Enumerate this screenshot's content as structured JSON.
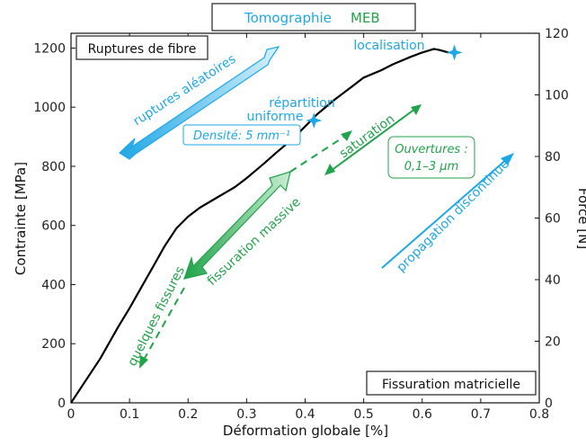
{
  "legend": {
    "tomographie": "Tomographie",
    "meb": "MEB",
    "color_tomographie": "#1ea7e6",
    "color_meb": "#21a34a"
  },
  "chart_data": {
    "type": "line",
    "xlabel": "Déformation globale [%]",
    "ylabel": "Contrainte [MPa]",
    "y2label": "Force [N]",
    "xlim": [
      0,
      0.8
    ],
    "ylim": [
      0,
      1250
    ],
    "y2lim": [
      0,
      120
    ],
    "x_ticks": [
      0,
      0.1,
      0.2,
      0.3,
      0.4,
      0.5,
      0.6,
      0.7,
      0.8
    ],
    "x_tick_labels": [
      "0",
      "0.1",
      "0.2",
      "0.3",
      "0.4",
      "0.5",
      "0.6",
      "0.7",
      "0.8"
    ],
    "y_ticks": [
      0,
      200,
      400,
      600,
      800,
      1000,
      1200
    ],
    "y_tick_labels": [
      "0",
      "200",
      "400",
      "600",
      "800",
      "1000",
      "1200"
    ],
    "y2_ticks": [
      0,
      20,
      40,
      60,
      80,
      100,
      120
    ],
    "y2_tick_labels": [
      "0",
      "20",
      "40",
      "60",
      "80",
      "100",
      "120"
    ],
    "grid": false,
    "curve_color": "#000000",
    "series": [
      {
        "x": [
          0,
          0.02,
          0.05,
          0.08,
          0.1,
          0.12,
          0.14,
          0.16,
          0.18,
          0.2,
          0.22,
          0.25,
          0.28,
          0.3,
          0.33,
          0.35,
          0.38,
          0.4,
          0.42,
          0.45,
          0.48,
          0.5,
          0.53,
          0.55,
          0.58,
          0.6,
          0.62,
          0.63,
          0.645
        ],
        "y": [
          0,
          60,
          150,
          255,
          320,
          390,
          460,
          530,
          590,
          630,
          660,
          695,
          730,
          760,
          810,
          845,
          895,
          935,
          975,
          1025,
          1070,
          1100,
          1125,
          1145,
          1170,
          1185,
          1197,
          1193,
          1185
        ]
      }
    ],
    "boxes": {
      "ruptures": "Ruptures de fibre",
      "fissuration": "Fissuration matricielle"
    },
    "annotations": {
      "ruptures_aleatoires": "ruptures aléatoires",
      "densite": "Densité: 5 mm⁻¹",
      "repartition": "répartition",
      "uniforme": "uniforme",
      "localisation": "localisation",
      "propagation": "propagation discontinue",
      "saturation": "saturation",
      "ouvertures_1": "Ouvertures :",
      "ouvertures_2": "0,1–3 µm",
      "fissuration_massive": "fissuration massive",
      "quelques_fissures": "quelques fissures"
    },
    "markers": [
      {
        "name": "repartition-marker",
        "x": 0.415,
        "y": 955,
        "color": "#1ea7e6"
      },
      {
        "name": "localisation-marker",
        "x": 0.655,
        "y": 1185,
        "color": "#1ea7e6"
      }
    ]
  }
}
